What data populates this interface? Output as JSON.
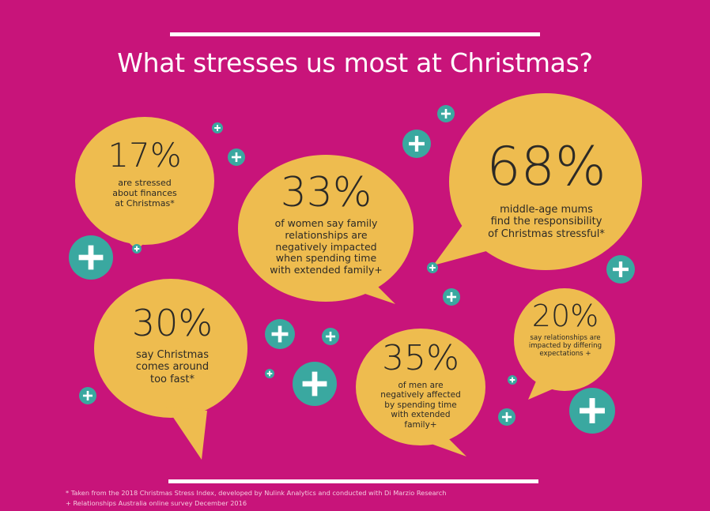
{
  "title": "What stresses us most at Christmas?",
  "colors": {
    "background": "#c8147a",
    "bubble": "#eebc4f",
    "plus_circle": "#3aa8a0",
    "text": "#2c2a26",
    "rule": "#ffffff"
  },
  "stats": [
    {
      "value": "17%",
      "lines": [
        "are stressed",
        "about finances",
        "at Christmas*"
      ]
    },
    {
      "value": "33%",
      "lines": [
        "of women say family",
        "relationships are",
        "negatively impacted",
        "when spending time",
        "with extended family+"
      ]
    },
    {
      "value": "68%",
      "lines": [
        "middle-age mums",
        "find the responsibility",
        "of Christmas stressful*"
      ]
    },
    {
      "value": "30%",
      "lines": [
        "say Christmas",
        "comes around",
        "too fast*"
      ]
    },
    {
      "value": "35%",
      "lines": [
        "of men are",
        "negatively affected",
        "by spending time",
        "with extended",
        "family+"
      ]
    },
    {
      "value": "20%",
      "lines": [
        "say relationships are",
        "impacted by differing",
        "expectations +"
      ]
    }
  ],
  "footnotes": [
    "* Taken from the 2018 Christmas Stress Index, developed by Nulink Analytics and conducted with Di Marzio Research",
    "+ Relationships Australia online survey December 2016"
  ],
  "decoration_icon": "plus-circle-icon"
}
